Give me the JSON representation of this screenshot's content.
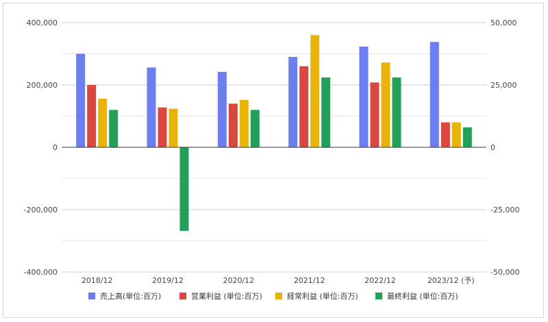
{
  "chart_data": {
    "type": "bar",
    "categories": [
      "2018/12",
      "2019/12",
      "2020/12",
      "2021/12",
      "2022/12",
      "2023/12 (予)"
    ],
    "series": [
      {
        "name": "売上高(単位:百万)",
        "axis": "left",
        "color": "#6d7ff0",
        "values": [
          300000,
          256000,
          242000,
          290000,
          323000,
          338000
        ]
      },
      {
        "name": "営業利益 (単位:百万)",
        "axis": "right",
        "color": "#d9473f",
        "values": [
          25000,
          16000,
          17500,
          32500,
          26000,
          10000
        ]
      },
      {
        "name": "経常利益 (単位:百万)",
        "axis": "right",
        "color": "#eab308",
        "values": [
          19500,
          15500,
          19000,
          45000,
          34000,
          10000
        ]
      },
      {
        "name": "最終利益 (単位:百万)",
        "axis": "right",
        "color": "#22a05a",
        "values": [
          15000,
          -33500,
          15000,
          28000,
          28000,
          8000
        ]
      }
    ],
    "y_left": {
      "ylim": [
        -400000,
        400000
      ],
      "ticks": [
        "400,000",
        "200,000",
        "0",
        "-200,000",
        "-400,000"
      ]
    },
    "y_right": {
      "ylim": [
        -50000,
        50000
      ],
      "ticks": [
        "50,000",
        "25,000",
        "0",
        "-25,000",
        "-50,000"
      ]
    },
    "grid": true,
    "legend_position": "bottom"
  }
}
